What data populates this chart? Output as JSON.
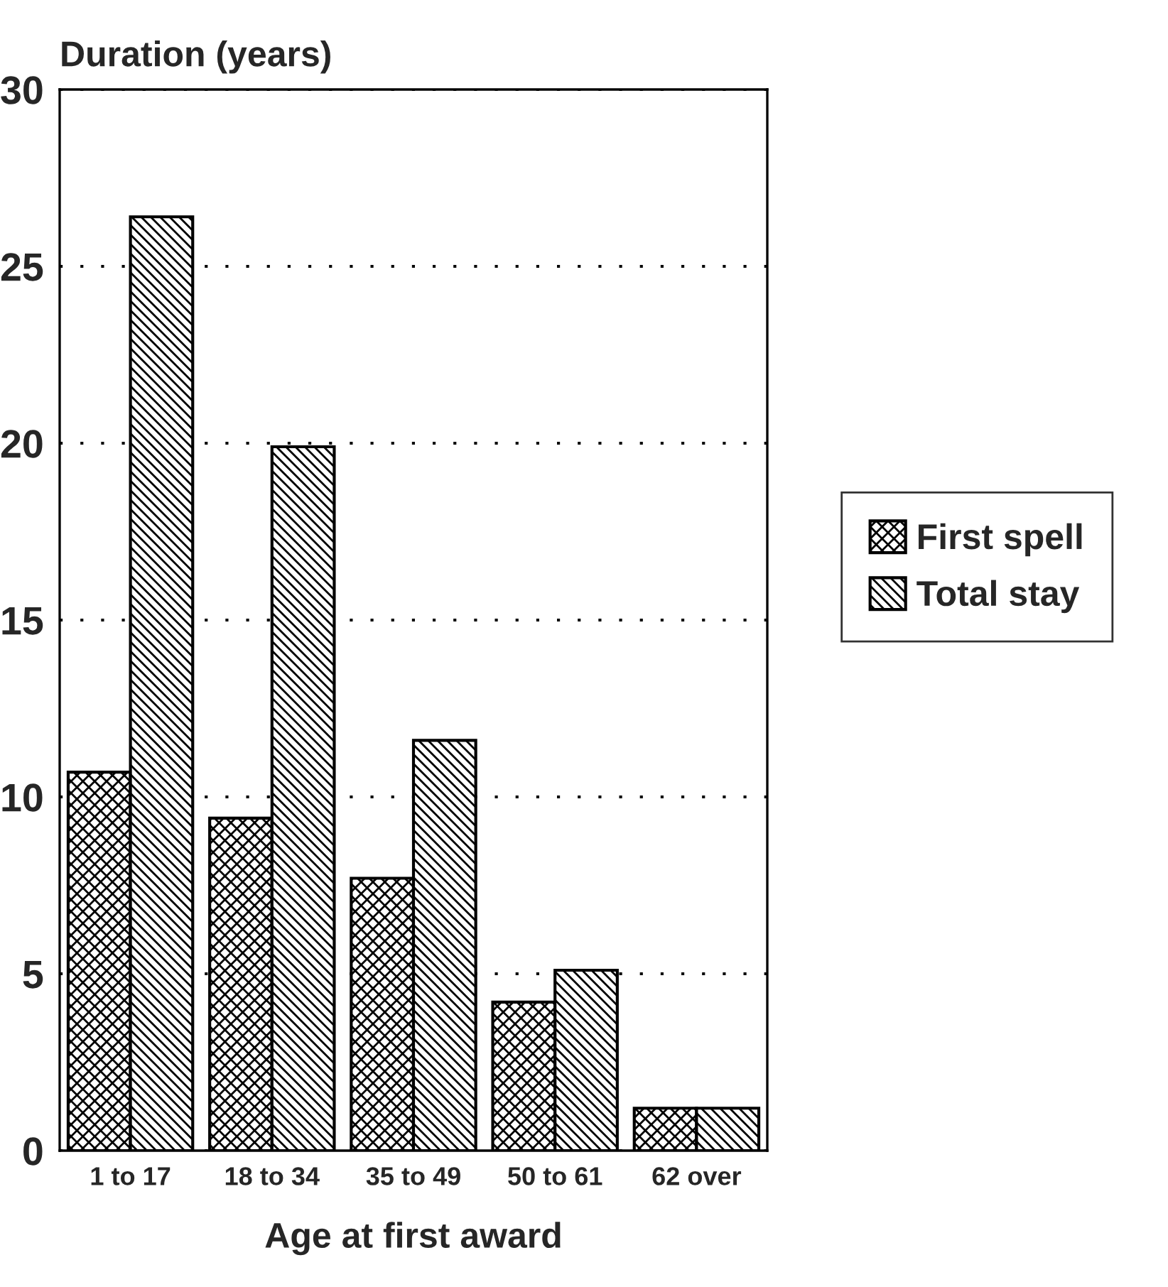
{
  "chart_data": {
    "type": "bar",
    "ylabel": "Duration (years)",
    "xlabel": "Age at first award",
    "categories": [
      "1 to 17",
      "18 to 34",
      "35 to 49",
      "50 to 61",
      "62 over"
    ],
    "series": [
      {
        "name": "First spell",
        "color": "#000000",
        "values": [
          10.7,
          9.4,
          7.7,
          4.2,
          1.2
        ]
      },
      {
        "name": "Total stay",
        "color": "#000000",
        "values": [
          26.4,
          19.9,
          11.6,
          5.1,
          1.2
        ]
      }
    ],
    "ylim": [
      0,
      30
    ],
    "yticks": [
      0,
      5,
      10,
      15,
      20,
      25,
      30
    ],
    "grid": "y",
    "legend": "right"
  }
}
